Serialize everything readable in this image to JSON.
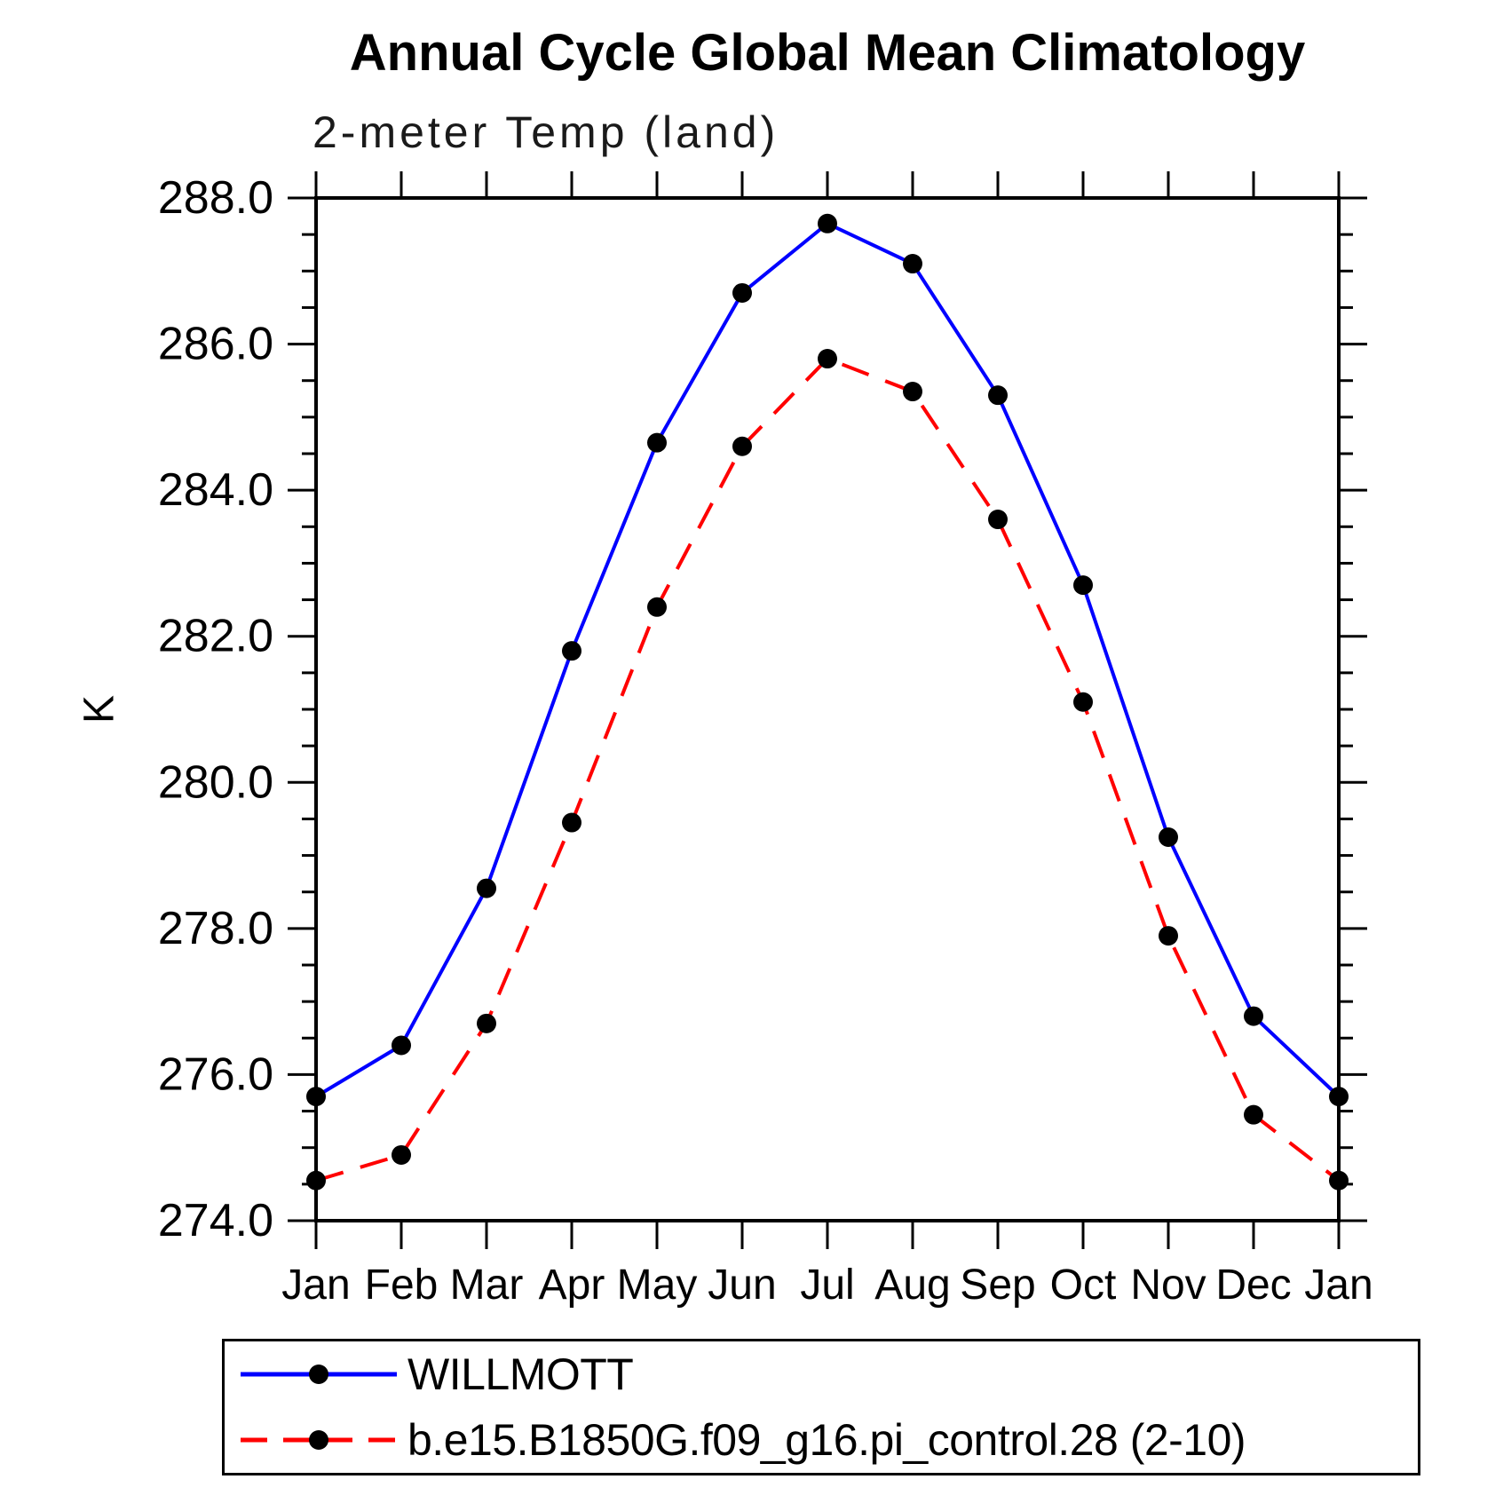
{
  "title": "Annual Cycle Global Mean Climatology",
  "subtitle": "2-meter Temp (land)",
  "chart_data": {
    "type": "line",
    "title": "Annual Cycle Global Mean Climatology",
    "subtitle": "2-meter Temp (land)",
    "xlabel": "",
    "ylabel": "K",
    "categories": [
      "Jan",
      "Feb",
      "Mar",
      "Apr",
      "May",
      "Jun",
      "Jul",
      "Aug",
      "Sep",
      "Oct",
      "Nov",
      "Dec",
      "Jan"
    ],
    "ylim": [
      274.0,
      288.0
    ],
    "ytick_major_interval": 2.0,
    "ytick_minor_interval": 0.5,
    "yticks": [
      288.0,
      286.0,
      284.0,
      282.0,
      280.0,
      278.0,
      276.0,
      274.0
    ],
    "grid": false,
    "legend_position": "bottom",
    "axis_color": "#000000",
    "marker_color": "#000000",
    "series": [
      {
        "name": "WILLMOTT",
        "color": "#0000ff",
        "style": "solid",
        "marker": "circle",
        "values": [
          275.7,
          276.4,
          278.55,
          281.8,
          284.65,
          286.7,
          287.65,
          287.1,
          285.3,
          282.7,
          279.25,
          276.8,
          275.7
        ]
      },
      {
        "name": "b.e15.B1850G.f09_g16.pi_control.28 (2-10)",
        "color": "#ff0000",
        "style": "dashed",
        "marker": "circle",
        "values": [
          274.55,
          274.9,
          276.7,
          279.45,
          282.4,
          284.6,
          285.8,
          285.35,
          283.6,
          281.1,
          277.9,
          275.45,
          274.55
        ]
      }
    ]
  }
}
